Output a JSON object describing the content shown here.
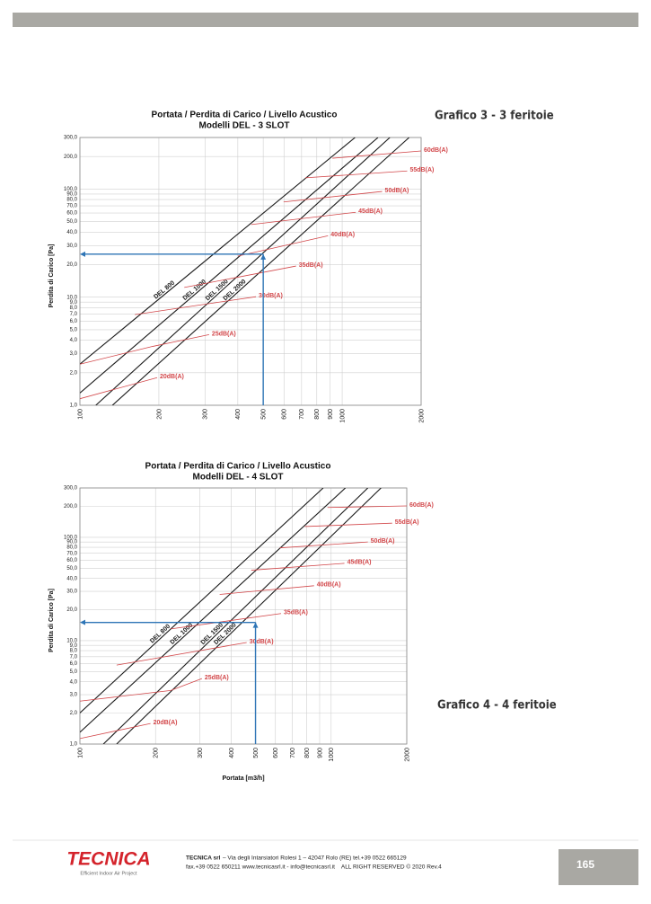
{
  "page": {
    "graph_3_label": "Grafico 3 - 3 feritoie",
    "graph_4_label": "Grafico 4 - 4 feritoie",
    "footer": {
      "logo": "TECNICA",
      "tagline": "Efficient Indoor Air Project",
      "company": "TECNICA srl",
      "address": "– Via degli Intarsiatori Rolesi 1 – 42047 Rolo (RE) tel.+39 0522 665129",
      "contacts": "fax.+39 0522 650211 www.tecnicasrl.it - info@tecnicasrl.it    ALL RIGHT RESERVED © 2020 Rev.4",
      "page_number": "165"
    }
  },
  "chart_data": [
    {
      "type": "line",
      "title": "Portata / Perdita di Carico / Livello Acustico",
      "subtitle": "Modelli DEL - 3 SLOT",
      "y_label": "Perdita di Carico [Pa]",
      "xscale": "log",
      "yscale": "log",
      "grid": true,
      "xlim": [
        100,
        2000
      ],
      "ylim": [
        1,
        300
      ],
      "xticks": [
        100,
        200,
        300,
        400,
        500,
        600,
        700,
        800,
        900,
        1000,
        2000
      ],
      "yticks": [
        {
          "value": 1,
          "label": "1,0"
        },
        {
          "value": 2,
          "label": "2,0"
        },
        {
          "value": 3,
          "label": "3,0"
        },
        {
          "value": 4,
          "label": "4,0"
        },
        {
          "value": 5,
          "label": "5,0"
        },
        {
          "value": 6,
          "label": "6,0"
        },
        {
          "value": 7,
          "label": "7,0"
        },
        {
          "value": 8,
          "label": "8,0"
        },
        {
          "value": 9,
          "label": "9,0"
        },
        {
          "value": 10,
          "label": "10,0"
        },
        {
          "value": 20,
          "label": "20,0"
        },
        {
          "value": 30,
          "label": "30,0"
        },
        {
          "value": 40,
          "label": "40,0"
        },
        {
          "value": 50,
          "label": "50,0"
        },
        {
          "value": 60,
          "label": "60,0"
        },
        {
          "value": 70,
          "label": "70,0"
        },
        {
          "value": 80,
          "label": "80,0"
        },
        {
          "value": 90,
          "label": "90,0"
        },
        {
          "value": 100,
          "label": "100,0"
        },
        {
          "value": 200,
          "label": "200,0"
        },
        {
          "value": 300,
          "label": "300,0"
        }
      ],
      "series": [
        {
          "name": "DEL 800",
          "color": "#1a1a1a",
          "x": [
            100,
            1120
          ],
          "values": [
            2.4,
            300
          ]
        },
        {
          "name": "DEL 1000",
          "color": "#1a1a1a",
          "x": [
            100,
            1370
          ],
          "values": [
            1.3,
            300
          ]
        },
        {
          "name": "DEL 1500",
          "color": "#1a1a1a",
          "x": [
            115,
            1520
          ],
          "values": [
            1,
            300
          ]
        },
        {
          "name": "DEL 2000",
          "color": "#1a1a1a",
          "x": [
            133,
            1800
          ],
          "values": [
            1,
            300
          ]
        },
        {
          "name": "20dB(A)",
          "color": "#d2474a",
          "x": [
            100,
            197
          ],
          "values": [
            1.15,
            1.8
          ]
        },
        {
          "name": "25dB(A)",
          "color": "#d2474a",
          "x": [
            100,
            189,
            311
          ],
          "values": [
            2.4,
            3.5,
            4.5
          ]
        },
        {
          "name": "30dB(A)",
          "color": "#d2474a",
          "x": [
            162,
            469
          ],
          "values": [
            6.9,
            10.1
          ]
        },
        {
          "name": "35dB(A)",
          "color": "#d2474a",
          "x": [
            250,
            667
          ],
          "values": [
            12.3,
            19.4
          ]
        },
        {
          "name": "40dB(A)",
          "color": "#d2474a",
          "x": [
            400,
            883
          ],
          "values": [
            24,
            37
          ]
        },
        {
          "name": "45dB(A)",
          "color": "#d2474a",
          "x": [
            450,
            1126
          ],
          "values": [
            47,
            61
          ]
        },
        {
          "name": "50dB(A)",
          "color": "#d2474a",
          "x": [
            598,
            1420
          ],
          "values": [
            76,
            95
          ]
        },
        {
          "name": "55dB(A)",
          "color": "#d2474a",
          "x": [
            723,
            1770
          ],
          "values": [
            127,
            147
          ]
        },
        {
          "name": "60dB(A)",
          "color": "#d2474a",
          "x": [
            918,
            2000
          ],
          "values": [
            193,
            225
          ]
        }
      ],
      "operating_point": {
        "x": 500,
        "y": 25,
        "color": "#2e75b6"
      }
    },
    {
      "type": "line",
      "title": "Portata / Perdita di Carico / Livello Acustico",
      "subtitle": "Modelli DEL - 4 SLOT",
      "x_label": "Portata [m3/h]",
      "y_label": "Perdita di Carico [Pa]",
      "xscale": "log",
      "yscale": "log",
      "grid": true,
      "xlim": [
        100,
        2000
      ],
      "ylim": [
        1,
        300
      ],
      "xticks": [
        100,
        200,
        300,
        400,
        500,
        600,
        700,
        800,
        900,
        1000,
        2000
      ],
      "yticks": [
        {
          "value": 1,
          "label": "1,0"
        },
        {
          "value": 2,
          "label": "2,0"
        },
        {
          "value": 3,
          "label": "3,0"
        },
        {
          "value": 4,
          "label": "4,0"
        },
        {
          "value": 5,
          "label": "5,0"
        },
        {
          "value": 6,
          "label": "6,0"
        },
        {
          "value": 7,
          "label": "7,0"
        },
        {
          "value": 8,
          "label": "8,0"
        },
        {
          "value": 9,
          "label": "9,0"
        },
        {
          "value": 10,
          "label": "10,0"
        },
        {
          "value": 20,
          "label": "20,0"
        },
        {
          "value": 30,
          "label": "30,0"
        },
        {
          "value": 40,
          "label": "40,0"
        },
        {
          "value": 50,
          "label": "50,0"
        },
        {
          "value": 60,
          "label": "60,0"
        },
        {
          "value": 70,
          "label": "70,0"
        },
        {
          "value": 80,
          "label": "80,0"
        },
        {
          "value": 90,
          "label": "90,0"
        },
        {
          "value": 100,
          "label": "100,0"
        },
        {
          "value": 200,
          "label": "200,0"
        },
        {
          "value": 300,
          "label": "300,0"
        }
      ],
      "series": [
        {
          "name": "DEL 800",
          "color": "#1a1a1a",
          "x": [
            100,
            930
          ],
          "values": [
            2.0,
            300
          ]
        },
        {
          "name": "DEL 1000",
          "color": "#1a1a1a",
          "x": [
            100,
            1140
          ],
          "values": [
            1.3,
            300
          ]
        },
        {
          "name": "DEL 1500",
          "color": "#1a1a1a",
          "x": [
            124,
            1400
          ],
          "values": [
            1,
            300
          ]
        },
        {
          "name": "DEL 2000",
          "color": "#1a1a1a",
          "x": [
            140,
            1580
          ],
          "values": [
            1,
            300
          ]
        },
        {
          "name": "20dB(A)",
          "color": "#d2474a",
          "x": [
            100,
            191
          ],
          "values": [
            1.13,
            1.58
          ]
        },
        {
          "name": "25dB(A)",
          "color": "#d2474a",
          "x": [
            100,
            230,
            306
          ],
          "values": [
            2.6,
            3.3,
            4.3
          ]
        },
        {
          "name": "30dB(A)",
          "color": "#d2474a",
          "x": [
            140,
            461
          ],
          "values": [
            5.8,
            9.6
          ]
        },
        {
          "name": "35dB(A)",
          "color": "#d2474a",
          "x": [
            230,
            632
          ],
          "values": [
            13,
            18.3
          ]
        },
        {
          "name": "40dB(A)",
          "color": "#d2474a",
          "x": [
            360,
            855
          ],
          "values": [
            28,
            34
          ]
        },
        {
          "name": "45dB(A)",
          "color": "#d2474a",
          "x": [
            481,
            1130
          ],
          "values": [
            48,
            56
          ]
        },
        {
          "name": "50dB(A)",
          "color": "#d2474a",
          "x": [
            625,
            1400
          ],
          "values": [
            79,
            90
          ]
        },
        {
          "name": "55dB(A)",
          "color": "#d2474a",
          "x": [
            786,
            1750
          ],
          "values": [
            127,
            137
          ]
        },
        {
          "name": "60dB(A)",
          "color": "#d2474a",
          "x": [
            967,
            2000
          ],
          "values": [
            194,
            201
          ]
        }
      ],
      "operating_point": {
        "x": 500,
        "y": 15,
        "color": "#2e75b6"
      }
    }
  ]
}
